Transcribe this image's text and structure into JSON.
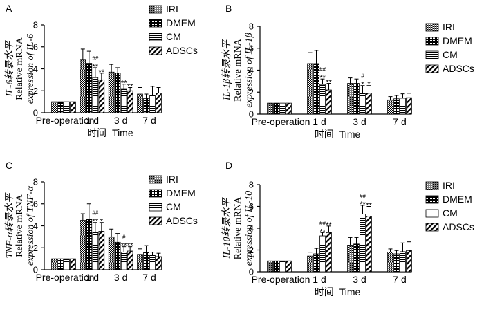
{
  "chart_data": [
    {
      "type": "bar",
      "panel": "A",
      "ylabel_cn": "IL-6转录水平",
      "ylabel_line2": "Relative mRNA",
      "ylabel_line3": "expression of IL-6",
      "ylim": [
        0,
        8
      ],
      "yticks": [
        "0",
        "2",
        "4",
        "6",
        "8"
      ],
      "categories": [
        "Pre-operation",
        "1 d",
        "3 d",
        "7 d"
      ],
      "xlabel_cn": "时间",
      "xlabel": "Time",
      "series": [
        {
          "name": "IRI",
          "values": [
            1.0,
            4.8,
            3.7,
            1.7
          ],
          "errors": [
            0.0,
            1.0,
            0.7,
            0.6
          ]
        },
        {
          "name": "DMEM",
          "values": [
            1.0,
            4.5,
            3.6,
            1.3
          ],
          "errors": [
            0.0,
            1.1,
            0.5,
            0.4
          ]
        },
        {
          "name": "CM",
          "values": [
            1.0,
            3.2,
            2.2,
            1.6
          ],
          "errors": [
            0.0,
            0.9,
            0.4,
            0.8
          ]
        },
        {
          "name": "ADSCs",
          "values": [
            1.0,
            3.0,
            2.0,
            1.8
          ],
          "errors": [
            0.0,
            0.6,
            0.3,
            0.5
          ]
        }
      ],
      "annotations": [
        {
          "category": 1,
          "series": 2,
          "lines": [
            "##",
            "**"
          ]
        },
        {
          "category": 1,
          "series": 3,
          "lines": [
            "**"
          ]
        },
        {
          "category": 2,
          "series": 2,
          "lines": [
            "**"
          ]
        },
        {
          "category": 2,
          "series": 3,
          "lines": [
            "**"
          ]
        }
      ]
    },
    {
      "type": "bar",
      "panel": "B",
      "ylabel_cn": "IL-1β转录水平",
      "ylabel_line2": "Relative mRNA",
      "ylabel_line3": "expression of IL-1β",
      "ylim": [
        0,
        8
      ],
      "yticks": [
        "0",
        "2",
        "4",
        "6",
        "8"
      ],
      "categories": [
        "Pre-operation",
        "1 d",
        "3 d",
        "7 d"
      ],
      "xlabel_cn": "时间",
      "xlabel": "Time",
      "series": [
        {
          "name": "IRI",
          "values": [
            1.0,
            4.6,
            2.8,
            1.3
          ],
          "errors": [
            0.0,
            1.0,
            0.5,
            0.3
          ]
        },
        {
          "name": "DMEM",
          "values": [
            1.0,
            4.6,
            2.8,
            1.4
          ],
          "errors": [
            0.0,
            1.2,
            0.4,
            0.3
          ]
        },
        {
          "name": "CM",
          "values": [
            1.0,
            2.7,
            1.9,
            1.45
          ],
          "errors": [
            0.0,
            0.5,
            0.7,
            0.4
          ]
        },
        {
          "name": "ADSCs",
          "values": [
            1.0,
            2.2,
            1.9,
            1.5
          ],
          "errors": [
            0.0,
            0.6,
            0.7,
            0.4
          ]
        }
      ],
      "annotations": [
        {
          "category": 1,
          "series": 2,
          "lines": [
            "##",
            "**"
          ]
        },
        {
          "category": 1,
          "series": 3,
          "lines": [
            "**"
          ]
        },
        {
          "category": 2,
          "series": 2,
          "lines": [
            "#",
            "*"
          ]
        },
        {
          "category": 2,
          "series": 3,
          "lines": [
            "*"
          ]
        }
      ]
    },
    {
      "type": "bar",
      "panel": "C",
      "ylabel_cn": "TNF-α转录水平",
      "ylabel_line2": "Relative mRNA",
      "ylabel_line3": "expression of TNF-α",
      "ylim": [
        0,
        8
      ],
      "yticks": [
        "0",
        "2",
        "4",
        "6",
        "8"
      ],
      "categories": [
        "Pre-operation",
        "1 d",
        "3 d",
        "7 d"
      ],
      "xlabel_cn": "",
      "xlabel": "",
      "series": [
        {
          "name": "IRI",
          "values": [
            1.0,
            4.5,
            3.0,
            1.4
          ],
          "errors": [
            0.0,
            0.6,
            0.7,
            0.5
          ]
        },
        {
          "name": "DMEM",
          "values": [
            1.0,
            4.6,
            2.5,
            1.6
          ],
          "errors": [
            0.0,
            1.4,
            0.8,
            0.6
          ]
        },
        {
          "name": "CM",
          "values": [
            1.0,
            3.4,
            1.6,
            1.3
          ],
          "errors": [
            0.0,
            0.9,
            0.5,
            0.3
          ]
        },
        {
          "name": "ADSCs",
          "values": [
            1.0,
            3.5,
            1.7,
            1.2
          ],
          "errors": [
            0.0,
            0.8,
            0.4,
            0.3
          ]
        }
      ],
      "annotations": [
        {
          "category": 1,
          "series": 2,
          "lines": [
            "##",
            "**"
          ]
        },
        {
          "category": 1,
          "series": 3,
          "lines": [
            "*"
          ]
        },
        {
          "category": 2,
          "series": 2,
          "lines": [
            "#",
            "**"
          ]
        },
        {
          "category": 2,
          "series": 3,
          "lines": [
            "**"
          ]
        }
      ]
    },
    {
      "type": "bar",
      "panel": "D",
      "ylabel_cn": "IL-10转录水平",
      "ylabel_line2": "Relative mRNA",
      "ylabel_line3": "expression of IL-10",
      "ylim": [
        0,
        8
      ],
      "yticks": [
        "0",
        "2",
        "4",
        "6",
        "8"
      ],
      "categories": [
        "Pre-operation",
        "1 d",
        "3 d",
        "7 d"
      ],
      "xlabel_cn": "时间",
      "xlabel": "Time",
      "series": [
        {
          "name": "IRI",
          "values": [
            1.0,
            1.45,
            2.45,
            1.8
          ],
          "errors": [
            0.0,
            0.35,
            0.7,
            0.3
          ]
        },
        {
          "name": "DMEM",
          "values": [
            1.0,
            1.65,
            2.55,
            1.65
          ],
          "errors": [
            0.0,
            0.5,
            0.6,
            0.3
          ]
        },
        {
          "name": "CM",
          "values": [
            1.0,
            3.3,
            5.3,
            1.85
          ],
          "errors": [
            0.0,
            0.3,
            0.8,
            0.8
          ]
        },
        {
          "name": "ADSCs",
          "values": [
            1.0,
            3.6,
            5.1,
            1.95
          ],
          "errors": [
            0.0,
            0.6,
            0.9,
            0.8
          ]
        }
      ],
      "annotations": [
        {
          "category": 1,
          "series": 2,
          "lines": [
            "##",
            "**"
          ]
        },
        {
          "category": 1,
          "series": 3,
          "lines": [
            "**"
          ]
        },
        {
          "category": 2,
          "series": 2,
          "lines": [
            "##",
            "**"
          ]
        },
        {
          "category": 2,
          "series": 3,
          "lines": [
            "**"
          ]
        }
      ]
    }
  ]
}
